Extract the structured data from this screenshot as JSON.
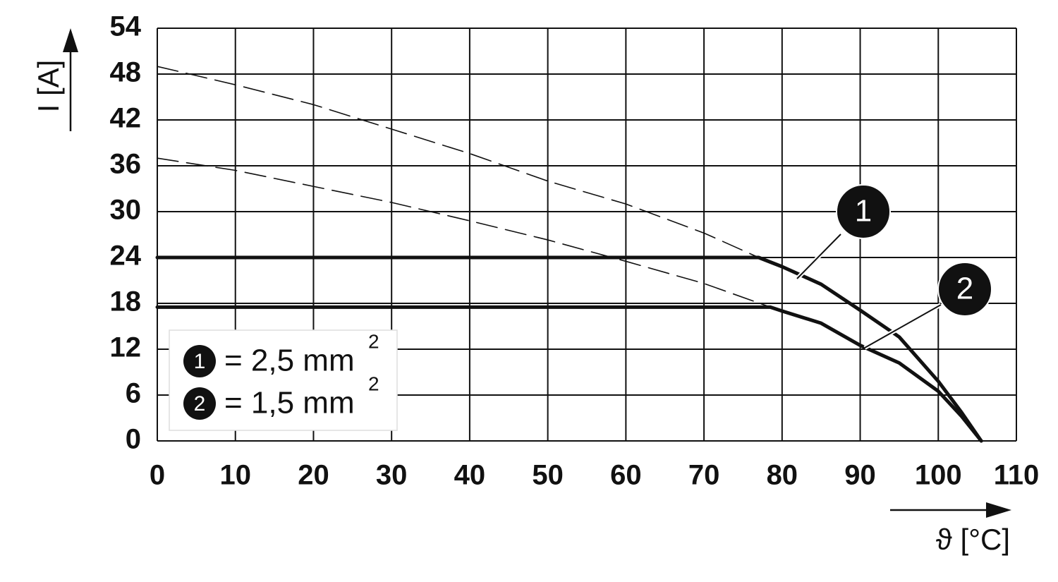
{
  "chart_data": {
    "type": "line",
    "x_label": "ϑ [°C]",
    "y_label": "I [A]",
    "xlim": [
      0,
      110
    ],
    "xticks": [
      0,
      10,
      20,
      30,
      40,
      50,
      60,
      70,
      80,
      90,
      100,
      110
    ],
    "ylim": [
      0,
      54
    ],
    "yticks": [
      0,
      6,
      12,
      18,
      24,
      30,
      36,
      42,
      48,
      54
    ],
    "grid": true,
    "series": [
      {
        "name": "1",
        "color": "#111111",
        "dashed": false,
        "x": [
          0,
          77,
          80,
          85,
          90,
          95,
          100,
          103,
          105.5
        ],
        "values": [
          24,
          24,
          22.8,
          20.5,
          17.1,
          13.6,
          7.8,
          3.7,
          0
        ]
      },
      {
        "name": "2",
        "color": "#111111",
        "dashed": false,
        "x": [
          0,
          78.5,
          80,
          85,
          90,
          95,
          100,
          103,
          105.5
        ],
        "values": [
          17.5,
          17.5,
          17,
          15.4,
          12.5,
          10.2,
          6.5,
          3.2,
          0
        ]
      },
      {
        "color": "#111111",
        "dashed": true,
        "x": [
          0,
          10,
          20,
          30,
          40,
          50,
          60,
          70,
          77
        ],
        "values": [
          49,
          46.6,
          44,
          40.8,
          37.6,
          34,
          31,
          27.2,
          24
        ]
      },
      {
        "color": "#111111",
        "dashed": true,
        "x": [
          0,
          10,
          20,
          30,
          40,
          50,
          60,
          70,
          78.5
        ],
        "values": [
          37,
          35.4,
          33.3,
          31.2,
          28.8,
          26.3,
          23.5,
          20.6,
          17.5
        ]
      }
    ],
    "legend": [
      {
        "text": "= 2,5 mm",
        "superscript": "2"
      },
      {
        "text": "= 1,5 mm",
        "superscript": "2"
      }
    ]
  }
}
